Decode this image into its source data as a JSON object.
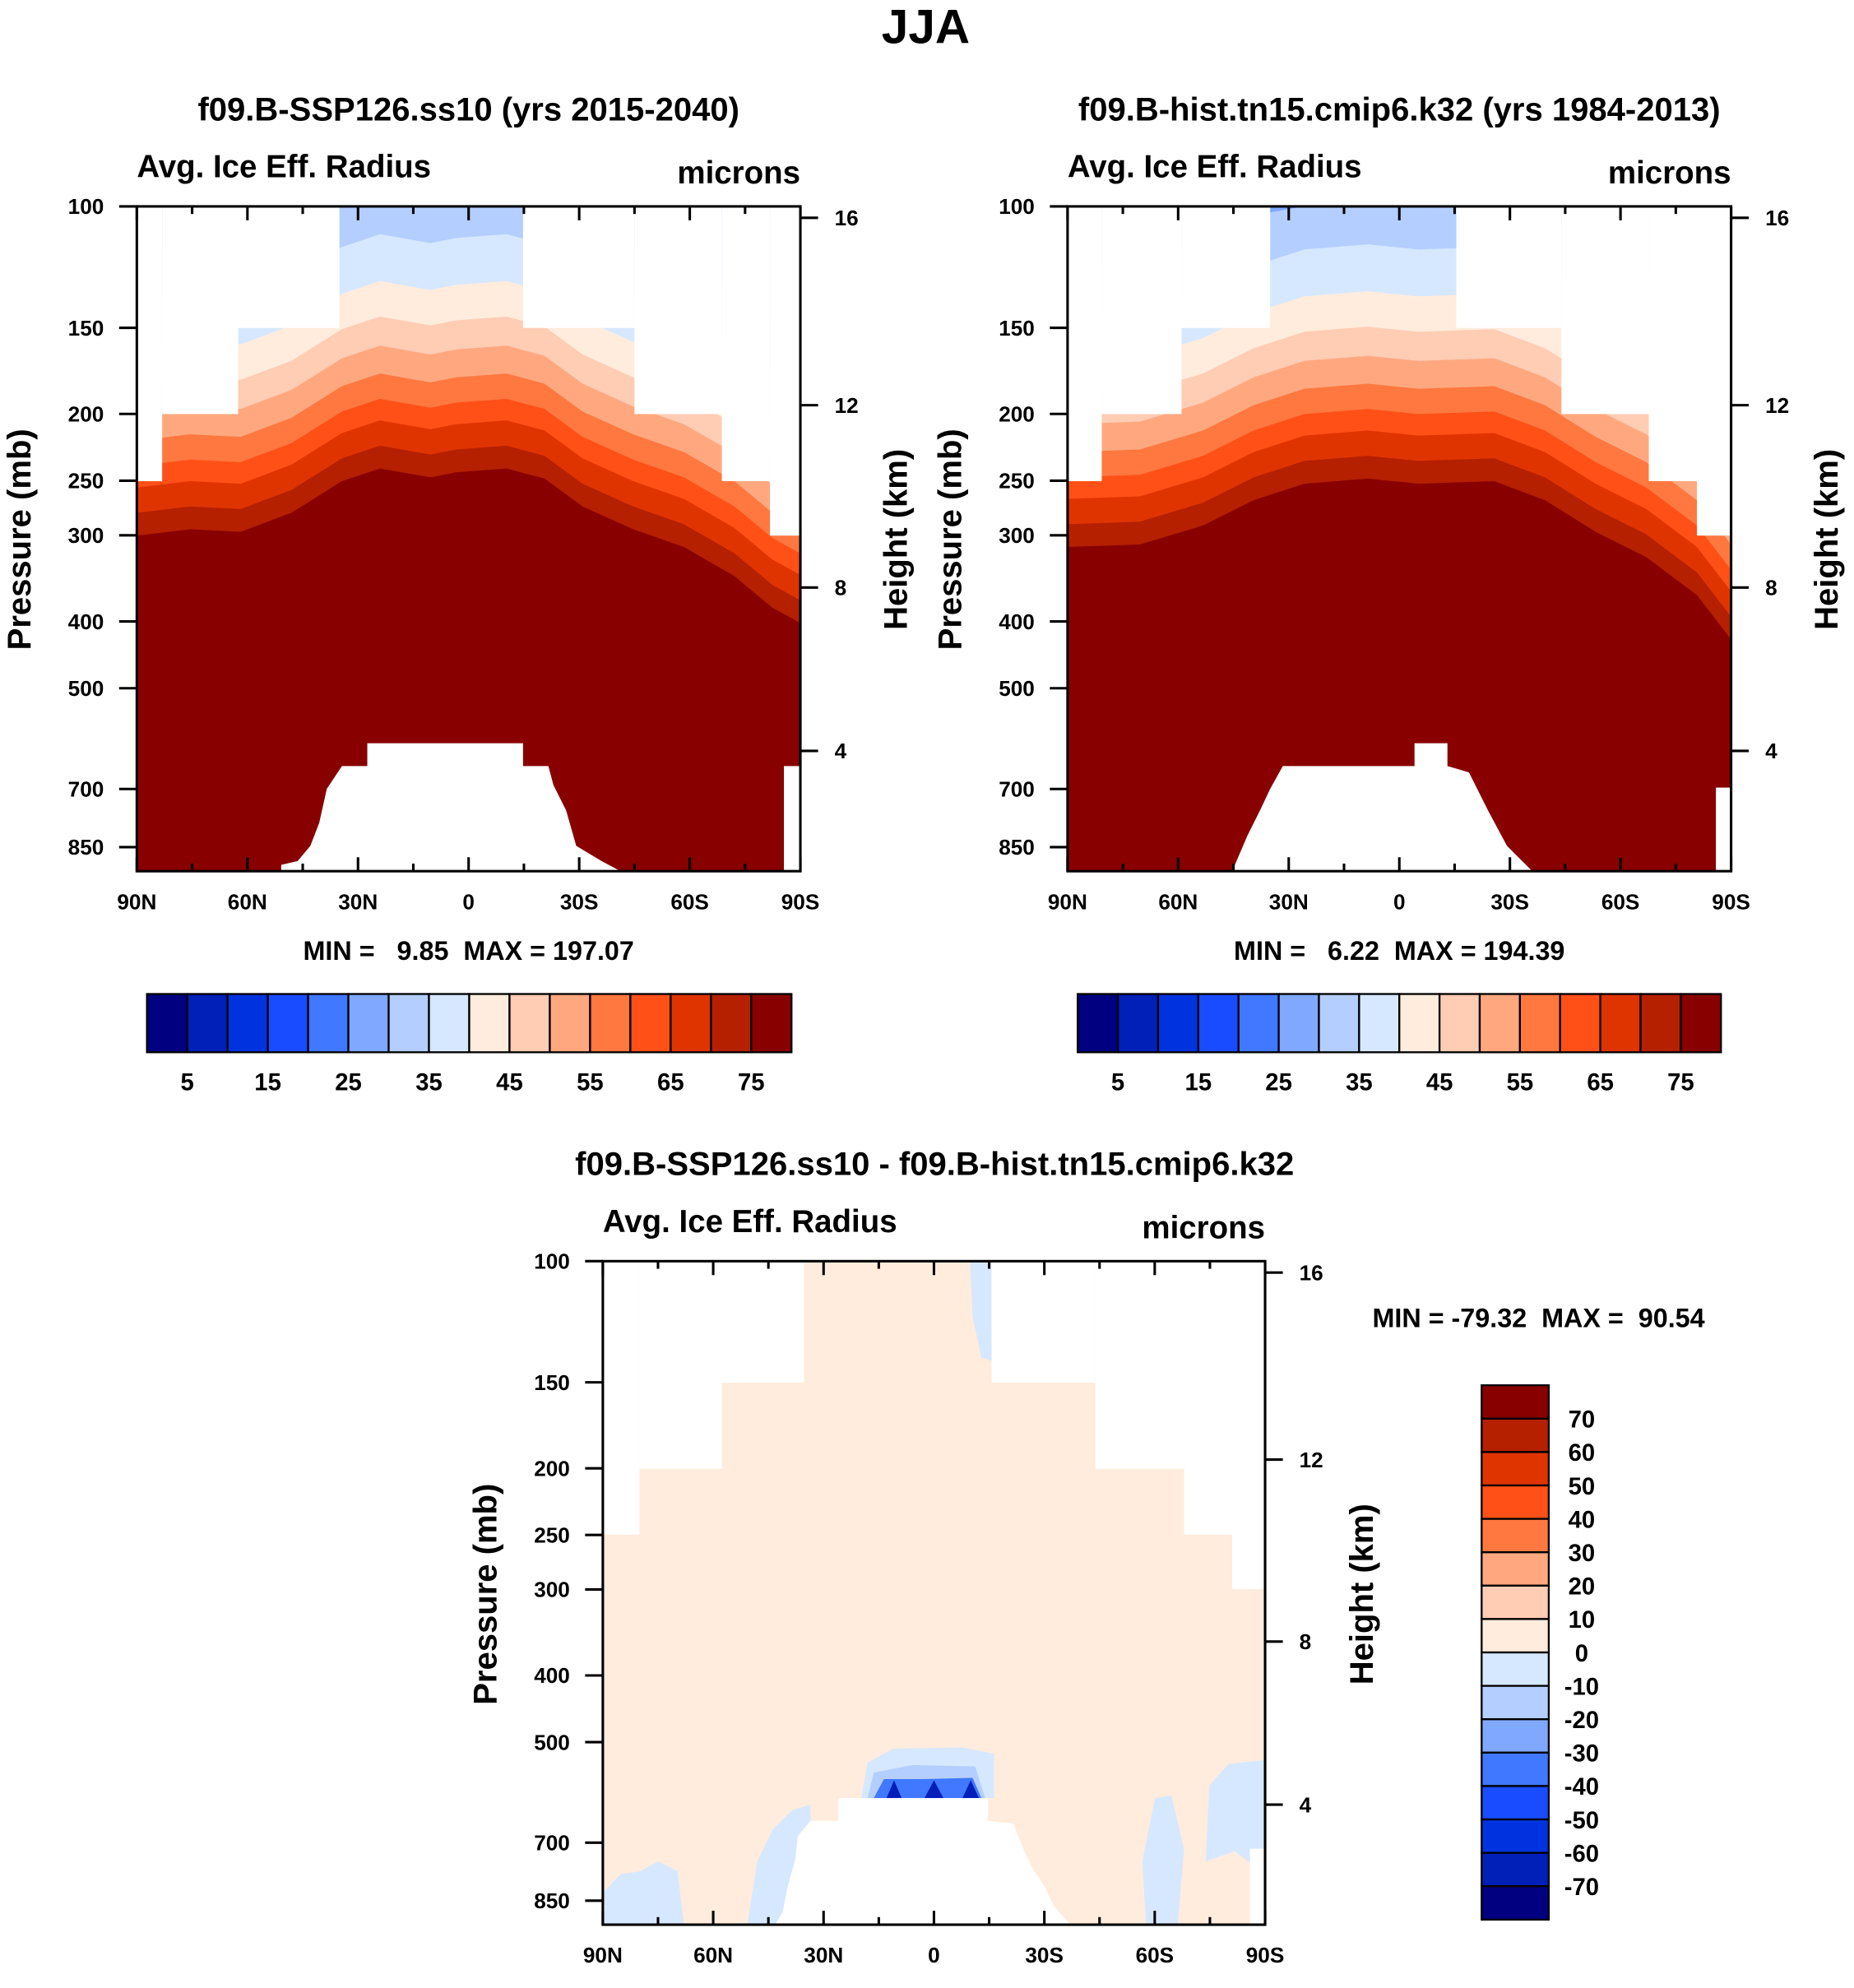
{
  "title": "JJA",
  "colors16": [
    "#000080",
    "#0020b8",
    "#0033e0",
    "#1a4cff",
    "#4078ff",
    "#80a8ff",
    "#b4ceff",
    "#d6e8ff",
    "#ffecdc",
    "#ffccb4",
    "#ffa880",
    "#ff7840",
    "#ff5018",
    "#e03400",
    "#b42000",
    "#880000"
  ],
  "chart_data": [
    {
      "type": "heatmap",
      "subtitle": "f09.B-SSP126.ss10 (yrs 2015-2040)",
      "left_title": "Avg. Ice Eff. Radius",
      "units": "microns",
      "xlabel": "",
      "ylabel": "Pressure (mb)",
      "ylabel_right": "Height (km)",
      "x_ticks": [
        "90N",
        "60N",
        "30N",
        "0",
        "30S",
        "60S",
        "90S"
      ],
      "y_ticks": [
        "100",
        "150",
        "200",
        "250",
        "300",
        "400",
        "500",
        "700",
        "850"
      ],
      "y_ticks_right": [
        "16",
        "12",
        "8",
        "4"
      ],
      "ylim": [
        1000,
        100
      ],
      "stats": {
        "min_label": "MIN =",
        "min": "9.85",
        "max_label": "MAX =",
        "max": "197.07"
      },
      "colorbar_labels": [
        "5",
        "15",
        "25",
        "35",
        "45",
        "55",
        "65",
        "75"
      ],
      "levels": [
        5,
        10,
        15,
        20,
        25,
        30,
        35,
        40,
        45,
        50,
        55,
        60,
        65,
        70,
        75
      ]
    },
    {
      "type": "heatmap",
      "subtitle": "f09.B-hist.tn15.cmip6.k32 (yrs 1984-2013)",
      "left_title": "Avg. Ice Eff. Radius",
      "units": "microns",
      "xlabel": "",
      "ylabel": "Pressure (mb)",
      "ylabel_right": "Height (km)",
      "x_ticks": [
        "90N",
        "60N",
        "30N",
        "0",
        "30S",
        "60S",
        "90S"
      ],
      "y_ticks": [
        "100",
        "150",
        "200",
        "250",
        "300",
        "400",
        "500",
        "700",
        "850"
      ],
      "y_ticks_right": [
        "16",
        "12",
        "8",
        "4"
      ],
      "ylim": [
        1000,
        100
      ],
      "stats": {
        "min_label": "MIN =",
        "min": "6.22",
        "max_label": "MAX =",
        "max": "194.39"
      },
      "colorbar_labels": [
        "5",
        "15",
        "25",
        "35",
        "45",
        "55",
        "65",
        "75"
      ],
      "levels": [
        5,
        10,
        15,
        20,
        25,
        30,
        35,
        40,
        45,
        50,
        55,
        60,
        65,
        70,
        75
      ]
    },
    {
      "type": "heatmap",
      "subtitle": "f09.B-SSP126.ss10 - f09.B-hist.tn15.cmip6.k32",
      "left_title": "Avg. Ice Eff. Radius",
      "units": "microns",
      "xlabel": "",
      "ylabel": "Pressure (mb)",
      "ylabel_right": "Height (km)",
      "x_ticks": [
        "90N",
        "60N",
        "30N",
        "0",
        "30S",
        "60S",
        "90S"
      ],
      "y_ticks": [
        "100",
        "150",
        "200",
        "250",
        "300",
        "400",
        "500",
        "700",
        "850"
      ],
      "y_ticks_right": [
        "16",
        "12",
        "8",
        "4"
      ],
      "ylim": [
        1000,
        100
      ],
      "stats": {
        "min_label": "MIN =",
        "min": "-79.32",
        "max_label": "MAX =",
        "max": "90.54"
      },
      "colorbar_labels": [
        "70",
        "60",
        "50",
        "40",
        "30",
        "20",
        "10",
        "0",
        "-10",
        "-20",
        "-30",
        "-40",
        "-50",
        "-60",
        "-70"
      ],
      "levels": [
        -70,
        -60,
        -50,
        -40,
        -30,
        -20,
        -10,
        0,
        10,
        20,
        30,
        40,
        50,
        60,
        70
      ]
    }
  ]
}
